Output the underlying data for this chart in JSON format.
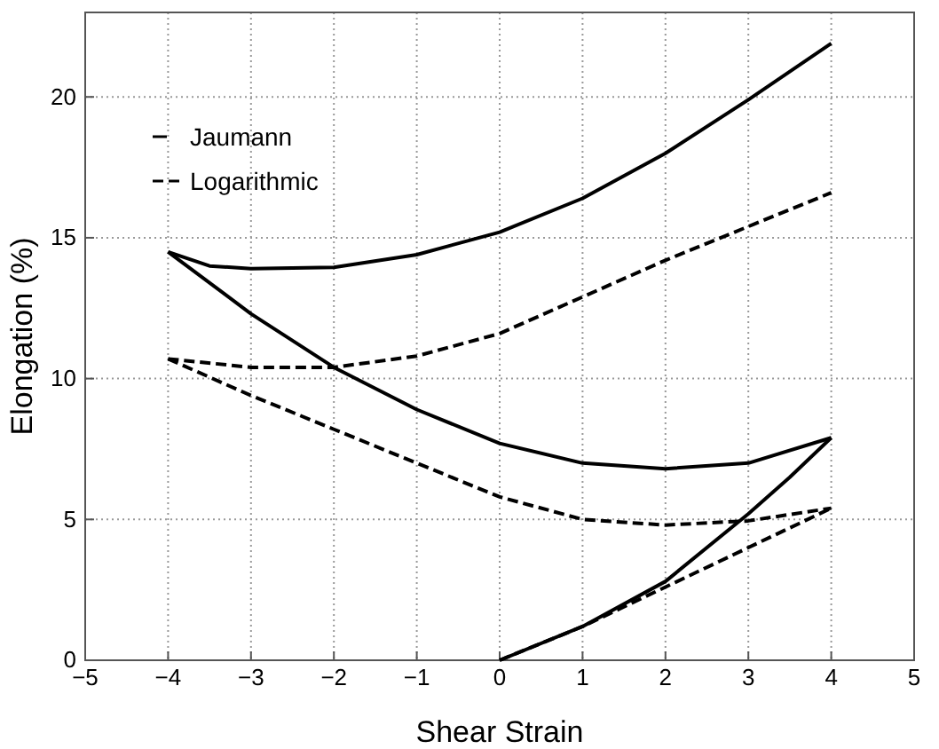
{
  "chart_data": {
    "type": "line",
    "xlabel": "Shear Strain",
    "ylabel": "Elongation (%)",
    "xlim": [
      -5,
      5
    ],
    "xticks": [
      -5,
      -4,
      -3,
      -2,
      -1,
      0,
      1,
      2,
      3,
      4,
      5
    ],
    "ylim": [
      0,
      23
    ],
    "yticks": [
      0,
      5,
      10,
      15,
      20
    ],
    "grid": true,
    "legend": "top left",
    "marker": "none",
    "series": [
      {
        "name": "Jaumann",
        "color": "#000000",
        "line_style": "solid",
        "x": [
          -4,
          -3.5,
          -3,
          -2,
          -1,
          0,
          1,
          2,
          3,
          4
        ],
        "values": [
          14.5,
          14.0,
          13.9,
          13.95,
          14.4,
          15.2,
          16.4,
          18.0,
          19.9,
          21.9
        ]
      },
      {
        "name": "Logarithmic",
        "color": "#000000",
        "line_style": "dashed",
        "x": [
          -4,
          -3,
          -2,
          -1,
          0,
          1,
          2,
          3,
          4
        ],
        "values": [
          10.7,
          10.4,
          10.4,
          10.8,
          11.6,
          12.9,
          14.2,
          15.4,
          16.6
        ]
      },
      {
        "color": "#000000",
        "line_style": "solid",
        "x": [
          -4,
          -3,
          -2,
          -1,
          0,
          1,
          2,
          3,
          4
        ],
        "values": [
          14.5,
          12.3,
          10.4,
          8.9,
          7.7,
          7.0,
          6.8,
          7.0,
          7.9
        ]
      },
      {
        "color": "#000000",
        "line_style": "dashed",
        "x": [
          -4,
          -3,
          -2,
          -1,
          0,
          1,
          2,
          3,
          4
        ],
        "values": [
          10.7,
          9.4,
          8.2,
          7.0,
          5.8,
          5.0,
          4.8,
          4.95,
          5.4
        ]
      },
      {
        "color": "#000000",
        "line_style": "solid",
        "x": [
          0,
          1,
          2,
          3,
          3.5,
          4
        ],
        "values": [
          0,
          1.2,
          2.8,
          5.2,
          6.5,
          7.9
        ]
      },
      {
        "color": "#000000",
        "line_style": "dashed",
        "x": [
          0,
          1,
          2,
          3,
          4
        ],
        "values": [
          0,
          1.2,
          2.6,
          4.0,
          5.4
        ]
      }
    ]
  }
}
